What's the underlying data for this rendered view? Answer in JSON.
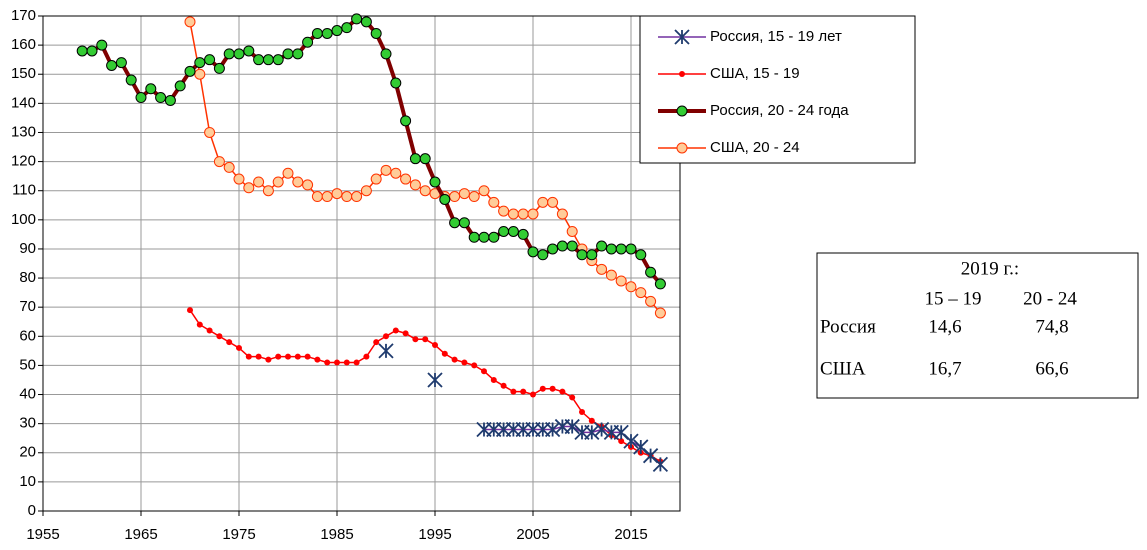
{
  "chart_data": {
    "type": "line",
    "xlim": [
      1955,
      2020
    ],
    "xticks": [
      1955,
      1965,
      1975,
      1985,
      1995,
      2005,
      2015
    ],
    "ylim": [
      0,
      170
    ],
    "yticks": [
      0,
      10,
      20,
      30,
      40,
      50,
      60,
      70,
      80,
      90,
      100,
      110,
      120,
      130,
      140,
      150,
      160,
      170
    ],
    "grid": true,
    "legend": "upper right",
    "series": [
      {
        "name": "Россия, 15 - 19 лет",
        "color": "#1f3b6e",
        "line_color": "#7030a0",
        "marker": "star",
        "x": [
          1990,
          1991,
          1992,
          1993,
          1994,
          1995,
          1996,
          1997,
          1998,
          1999,
          2000,
          2001,
          2002,
          2003,
          2004,
          2005,
          2006,
          2007,
          2008,
          2009,
          2010,
          2011,
          2012,
          2013,
          2014,
          2015,
          2016,
          2017,
          2018
        ],
        "values": [
          55,
          null,
          null,
          null,
          null,
          45,
          null,
          null,
          null,
          null,
          28,
          28,
          28,
          28,
          28,
          28,
          28,
          28,
          29,
          29,
          27,
          27,
          28,
          27,
          27,
          24,
          22,
          19,
          16
        ]
      },
      {
        "name": "США, 15 - 19",
        "color": "#ff0000",
        "line_color": "#ff0000",
        "marker": "dot",
        "x": [
          1970,
          1971,
          1972,
          1973,
          1974,
          1975,
          1976,
          1977,
          1978,
          1979,
          1980,
          1981,
          1982,
          1983,
          1984,
          1985,
          1986,
          1987,
          1988,
          1989,
          1990,
          1991,
          1992,
          1993,
          1994,
          1995,
          1996,
          1997,
          1998,
          1999,
          2000,
          2001,
          2002,
          2003,
          2004,
          2005,
          2006,
          2007,
          2008,
          2009,
          2010,
          2011,
          2012,
          2013,
          2014,
          2015,
          2016,
          2017,
          2018
        ],
        "values": [
          69,
          64,
          62,
          60,
          58,
          56,
          53,
          53,
          52,
          53,
          53,
          53,
          53,
          52,
          51,
          51,
          51,
          51,
          53,
          58,
          60,
          62,
          61,
          59,
          59,
          57,
          54,
          52,
          51,
          50,
          48,
          45,
          43,
          41,
          41,
          40,
          42,
          42,
          41,
          39,
          34,
          31,
          29,
          26,
          24,
          22,
          20,
          19,
          17
        ]
      },
      {
        "name": "Россия, 20 - 24 года",
        "color": "#33cc33",
        "line_color": "#800000",
        "marker": "circle",
        "line_width": 4,
        "x": [
          1959,
          1960,
          1961,
          1962,
          1963,
          1964,
          1965,
          1966,
          1967,
          1968,
          1969,
          1970,
          1971,
          1972,
          1973,
          1974,
          1975,
          1976,
          1977,
          1978,
          1979,
          1980,
          1981,
          1982,
          1983,
          1984,
          1985,
          1986,
          1987,
          1988,
          1989,
          1990,
          1991,
          1992,
          1993,
          1994,
          1995,
          1996,
          1997,
          1998,
          1999,
          2000,
          2001,
          2002,
          2003,
          2004,
          2005,
          2006,
          2007,
          2008,
          2009,
          2010,
          2011,
          2012,
          2013,
          2014,
          2015,
          2016,
          2017,
          2018
        ],
        "values": [
          158,
          158,
          160,
          153,
          154,
          148,
          142,
          145,
          142,
          141,
          146,
          151,
          154,
          155,
          152,
          157,
          157,
          158,
          155,
          155,
          155,
          157,
          157,
          161,
          164,
          164,
          165,
          166,
          169,
          168,
          164,
          157,
          147,
          134,
          121,
          121,
          113,
          107,
          99,
          99,
          94,
          94,
          94,
          96,
          96,
          95,
          89,
          88,
          90,
          91,
          91,
          88,
          88,
          91,
          90,
          90,
          90,
          88,
          82,
          78
        ]
      },
      {
        "name": "США, 20 - 24",
        "color": "#ffcc99",
        "line_color": "#ff3300",
        "marker": "circle",
        "line_width": 1.5,
        "x": [
          1970,
          1971,
          1972,
          1973,
          1974,
          1975,
          1976,
          1977,
          1978,
          1979,
          1980,
          1981,
          1982,
          1983,
          1984,
          1985,
          1986,
          1987,
          1988,
          1989,
          1990,
          1991,
          1992,
          1993,
          1994,
          1995,
          1996,
          1997,
          1998,
          1999,
          2000,
          2001,
          2002,
          2003,
          2004,
          2005,
          2006,
          2007,
          2008,
          2009,
          2010,
          2011,
          2012,
          2013,
          2014,
          2015,
          2016,
          2017,
          2018
        ],
        "values": [
          168,
          150,
          130,
          120,
          118,
          114,
          111,
          113,
          110,
          113,
          116,
          113,
          112,
          108,
          108,
          109,
          108,
          108,
          110,
          114,
          117,
          116,
          114,
          112,
          110,
          109,
          108,
          108,
          109,
          108,
          110,
          106,
          103,
          102,
          102,
          102,
          106,
          106,
          102,
          96,
          90,
          86,
          83,
          81,
          79,
          77,
          75,
          72,
          68
        ]
      }
    ]
  },
  "table": {
    "title": "2019 г.:",
    "columns": [
      "15 – 19",
      "20 - 24"
    ],
    "rows": [
      [
        "Россия",
        "14,6",
        "74,8"
      ],
      [
        "США",
        "16,7",
        "66,6"
      ]
    ]
  }
}
